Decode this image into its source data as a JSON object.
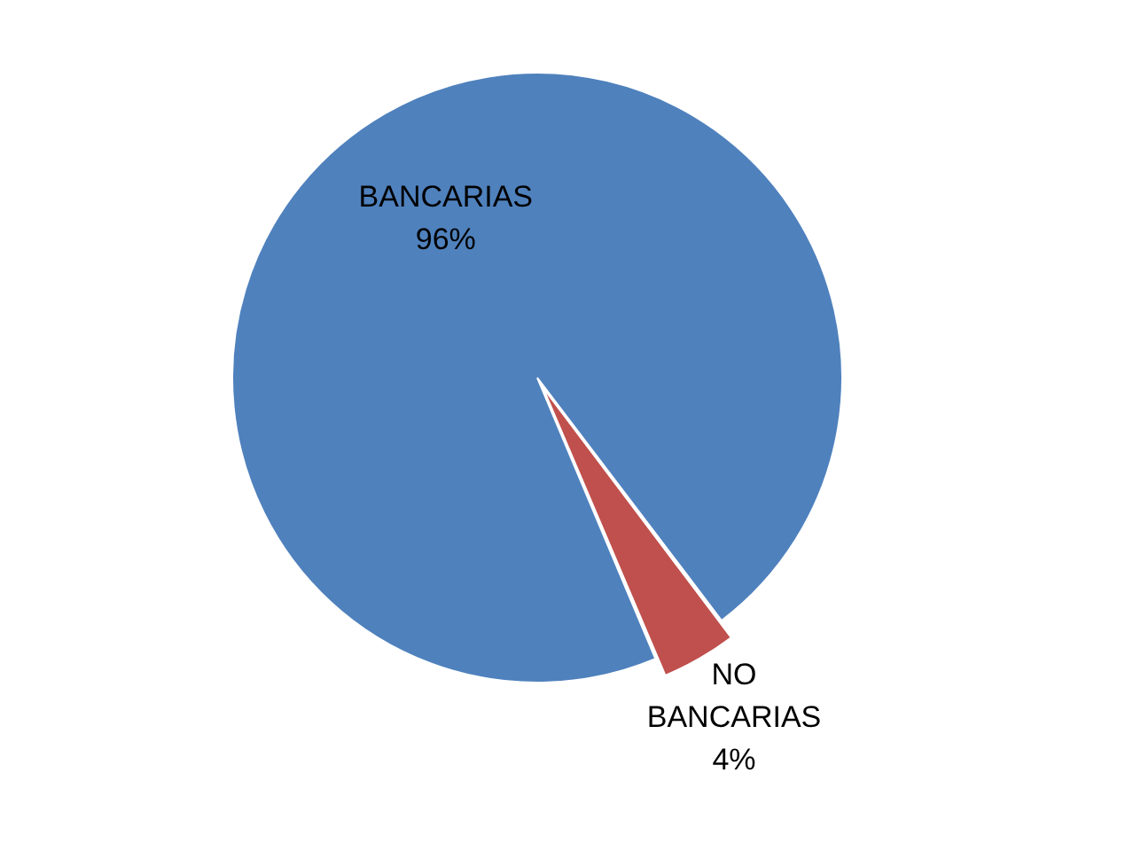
{
  "chart_data": {
    "type": "pie",
    "categories": [
      "BANCARIAS",
      "NO BANCARIAS"
    ],
    "values": [
      96,
      4
    ],
    "colors": [
      "#4f81bd",
      "#c0504d"
    ],
    "value_labels": [
      "96%",
      "4%"
    ],
    "legend": false
  }
}
